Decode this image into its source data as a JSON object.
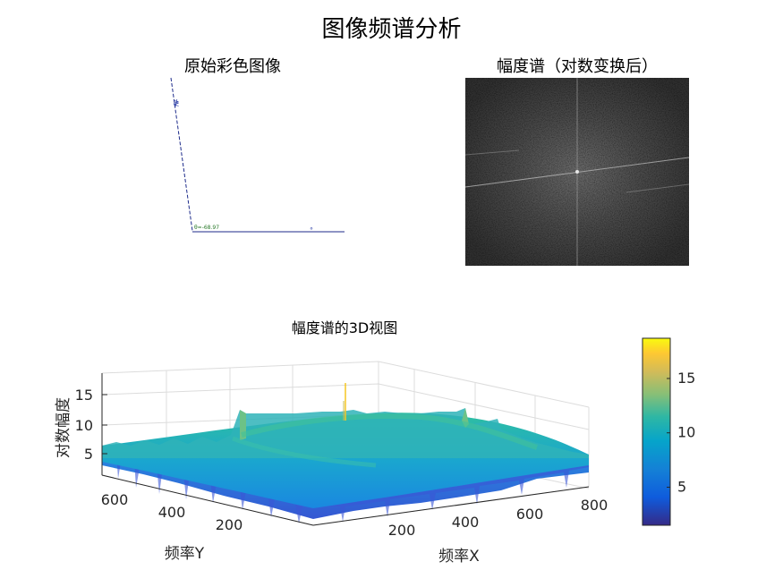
{
  "figure": {
    "suptitle": "图像频谱分析",
    "panel1_title": "原始彩色图像",
    "panel1_annotation": "θ=-68.97",
    "panel2_title": "幅度谱（对数变换后）",
    "panel3_title": "幅度谱的3D视图"
  },
  "chart_data": {
    "type": "surface",
    "title": "幅度谱的3D视图",
    "xlabel": "频率X",
    "ylabel": "频率Y",
    "zlabel": "对数幅度",
    "xticks": [
      200,
      400,
      600,
      800
    ],
    "yticks": [
      200,
      400,
      600
    ],
    "zticks": [
      5,
      10,
      15
    ],
    "xlim": [
      0,
      880
    ],
    "ylim": [
      0,
      700
    ],
    "zlim": [
      0,
      19
    ],
    "colorbar": {
      "ticks": [
        5,
        10,
        15
      ],
      "range": [
        1.5,
        18.7
      ],
      "colormap": "parula"
    },
    "surface_summary": {
      "baseline_level": 6.5,
      "center_peak": 18.7,
      "cross_ridge_level": 11
    },
    "grid": true
  },
  "colors": {
    "parula": [
      "#352a87",
      "#0f5cdd",
      "#1481d6",
      "#06a4ca",
      "#2eb7a4",
      "#87bf77",
      "#d1bb59",
      "#fec832",
      "#f9fb0e"
    ]
  }
}
